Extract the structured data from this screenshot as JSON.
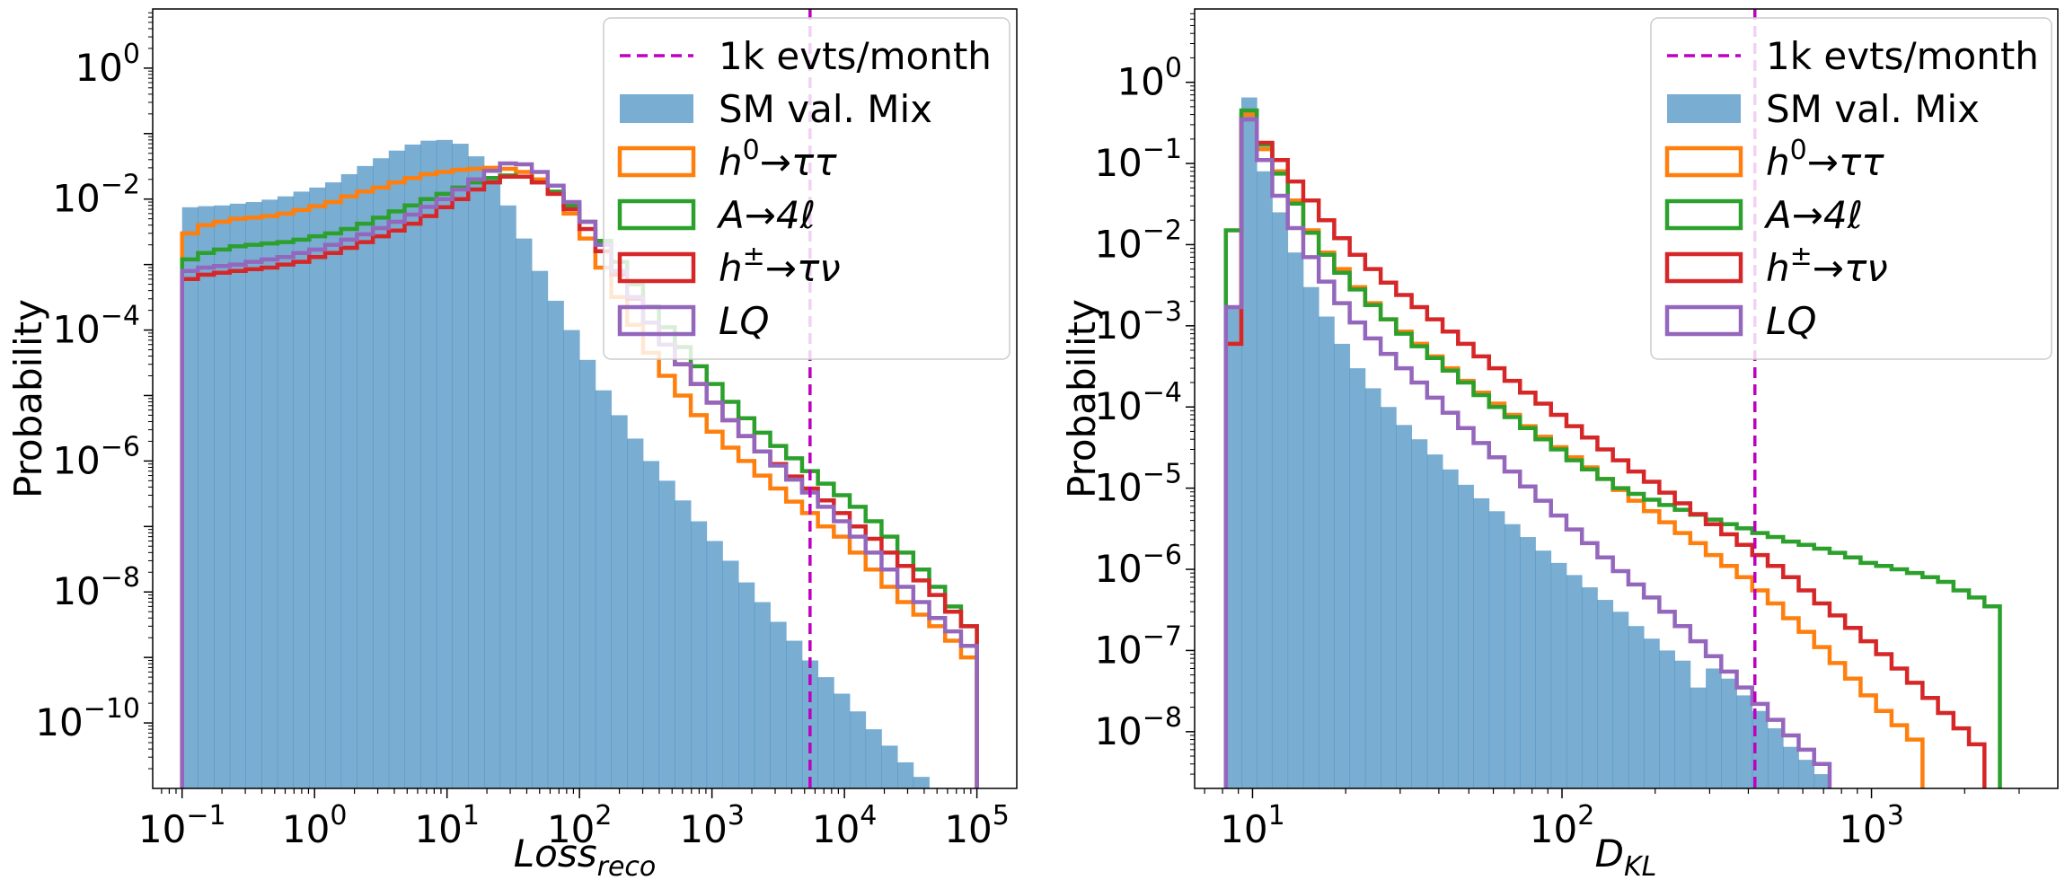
{
  "colors": {
    "sm": "#1f77b4",
    "h0": "#ff7f0e",
    "A": "#2ca02c",
    "hpm": "#d62728",
    "LQ": "#9467bd",
    "threshold": "#bf00bf"
  },
  "chart_data": [
    {
      "type": "histogram",
      "xlabel": "Loss",
      "xlabel_sub": "reco",
      "ylabel": "Probability",
      "xscale": "log",
      "yscale": "log",
      "xlim": [
        0.06,
        200000
      ],
      "ylim": [
        1e-11,
        8
      ],
      "xticks": [
        {
          "base": "10",
          "exp": "−1",
          "v": 0.1
        },
        {
          "base": "10",
          "exp": "0",
          "v": 1
        },
        {
          "base": "10",
          "exp": "1",
          "v": 10
        },
        {
          "base": "10",
          "exp": "2",
          "v": 100
        },
        {
          "base": "10",
          "exp": "3",
          "v": 1000
        },
        {
          "base": "10",
          "exp": "4",
          "v": 10000
        },
        {
          "base": "10",
          "exp": "5",
          "v": 100000
        }
      ],
      "yticks": [
        {
          "base": "10",
          "exp": "0",
          "v": 1
        },
        {
          "base": "10",
          "exp": "−2",
          "v": 0.01
        },
        {
          "base": "10",
          "exp": "−4",
          "v": 0.0001
        },
        {
          "base": "10",
          "exp": "−6",
          "v": 1e-06
        },
        {
          "base": "10",
          "exp": "−8",
          "v": 1e-08
        },
        {
          "base": "10",
          "exp": "−10",
          "v": 1e-10
        }
      ],
      "bins": {
        "min": 0.1,
        "max": 100000,
        "count": 50
      },
      "threshold": 5500,
      "legend_location": "upper-right",
      "series": [
        {
          "name": "SM val. Mix",
          "kind": "filled",
          "color_key": "sm",
          "values": [
            0.0075,
            0.0078,
            0.008,
            0.0085,
            0.009,
            0.0098,
            0.011,
            0.013,
            0.015,
            0.018,
            0.024,
            0.032,
            0.042,
            0.055,
            0.068,
            0.078,
            0.08,
            0.07,
            0.045,
            0.022,
            0.008,
            0.0025,
            0.0008,
            0.00028,
            0.0001,
            3.5e-05,
            1.2e-05,
            5e-06,
            2.2e-06,
            1e-06,
            5e-07,
            2.5e-07,
            1.2e-07,
            6e-08,
            3e-08,
            1.4e-08,
            7e-09,
            3.5e-09,
            1.8e-09,
            9e-10,
            5e-10,
            2.8e-10,
            1.5e-10,
            8e-11,
            4.5e-11,
            2.5e-11,
            1.5e-11,
            null,
            null,
            null
          ]
        },
        {
          "name": "h^0→ττ",
          "kind": "step",
          "color_key": "h0",
          "values": [
            0.003,
            0.004,
            0.0045,
            0.005,
            0.0052,
            0.0055,
            0.006,
            0.0068,
            0.0078,
            0.009,
            0.011,
            0.013,
            0.015,
            0.018,
            0.021,
            0.024,
            0.026,
            0.028,
            0.029,
            0.03,
            0.029,
            0.026,
            0.02,
            0.012,
            0.006,
            0.0025,
            0.0009,
            0.00032,
            0.00012,
            4.5e-05,
            2e-05,
            1e-05,
            5e-06,
            2.8e-06,
            1.6e-06,
            1e-06,
            6e-07,
            3.8e-07,
            2.4e-07,
            1.6e-07,
            1e-07,
            7e-08,
            4e-08,
            2.2e-08,
            1.2e-08,
            7e-09,
            4.5e-09,
            3e-09,
            1.8e-09,
            1e-09
          ]
        },
        {
          "name": "A→4ℓ",
          "kind": "step",
          "color_key": "A",
          "values": [
            0.0012,
            0.0015,
            0.0017,
            0.0019,
            0.002,
            0.0021,
            0.0022,
            0.0024,
            0.0027,
            0.003,
            0.0035,
            0.0042,
            0.0052,
            0.0065,
            0.008,
            0.01,
            0.012,
            0.015,
            0.018,
            0.021,
            0.023,
            0.022,
            0.018,
            0.013,
            0.008,
            0.0045,
            0.0023,
            0.0011,
            0.0005,
            0.00023,
            0.00011,
            5.5e-05,
            2.8e-05,
            1.5e-05,
            8e-06,
            4.5e-06,
            2.7e-06,
            1.7e-06,
            1.1e-06,
            7e-07,
            4.5e-07,
            3e-07,
            2e-07,
            1.2e-07,
            7e-08,
            4e-08,
            2.2e-08,
            1.2e-08,
            6e-09,
            3e-09
          ]
        },
        {
          "name": "h^±→τν",
          "kind": "step",
          "color_key": "hpm",
          "values": [
            0.0006,
            0.0007,
            0.00075,
            0.0008,
            0.00085,
            0.0009,
            0.001,
            0.0011,
            0.0013,
            0.0015,
            0.0018,
            0.0022,
            0.0027,
            0.0033,
            0.0042,
            0.0055,
            0.0075,
            0.01,
            0.014,
            0.018,
            0.022,
            0.022,
            0.018,
            0.012,
            0.007,
            0.0035,
            0.0016,
            0.0007,
            0.0003,
            0.00013,
            6e-05,
            3e-05,
            1.5e-05,
            7.8e-06,
            4.2e-06,
            2.4e-06,
            1.4e-06,
            9e-07,
            5.8e-07,
            3.8e-07,
            2.5e-07,
            1.6e-07,
            1e-07,
            6.5e-08,
            4e-08,
            2.5e-08,
            1.5e-08,
            9e-09,
            5e-09,
            3e-09
          ]
        },
        {
          "name": "LQ",
          "kind": "step",
          "color_key": "LQ",
          "values": [
            0.0008,
            0.0009,
            0.00095,
            0.001,
            0.0011,
            0.0012,
            0.0013,
            0.0015,
            0.0017,
            0.002,
            0.0024,
            0.0029,
            0.0036,
            0.0045,
            0.0058,
            0.0076,
            0.01,
            0.014,
            0.02,
            0.027,
            0.035,
            0.034,
            0.026,
            0.016,
            0.009,
            0.0045,
            0.002,
            0.0008,
            0.00032,
            0.00013,
            6e-05,
            3e-05,
            1.5e-05,
            7.8e-06,
            4.2e-06,
            2.4e-06,
            1.4e-06,
            8.5e-07,
            5.2e-07,
            3.3e-07,
            2e-07,
            1.2e-07,
            7e-08,
            4e-08,
            2.2e-08,
            1.2e-08,
            7e-09,
            4e-09,
            2.5e-09,
            1.5e-09
          ]
        }
      ]
    },
    {
      "type": "histogram",
      "xlabel": "D",
      "xlabel_sub": "KL",
      "ylabel": "Probability",
      "xscale": "log",
      "yscale": "log",
      "xlim": [
        6.5,
        4000
      ],
      "ylim": [
        2e-09,
        8
      ],
      "xticks": [
        {
          "base": "10",
          "exp": "1",
          "v": 10
        },
        {
          "base": "10",
          "exp": "2",
          "v": 100
        },
        {
          "base": "10",
          "exp": "3",
          "v": 1000
        }
      ],
      "yticks": [
        {
          "base": "10",
          "exp": "0",
          "v": 1
        },
        {
          "base": "10",
          "exp": "−1",
          "v": 0.1
        },
        {
          "base": "10",
          "exp": "−2",
          "v": 0.01
        },
        {
          "base": "10",
          "exp": "−3",
          "v": 0.001
        },
        {
          "base": "10",
          "exp": "−4",
          "v": 0.0001
        },
        {
          "base": "10",
          "exp": "−5",
          "v": 1e-05
        },
        {
          "base": "10",
          "exp": "−6",
          "v": 1e-06
        },
        {
          "base": "10",
          "exp": "−7",
          "v": 1e-07
        },
        {
          "base": "10",
          "exp": "−8",
          "v": 1e-08
        }
      ],
      "bins": {
        "min": 8.2,
        "max": 2600,
        "count": 50
      },
      "threshold": 420,
      "legend_location": "upper-right",
      "series": [
        {
          "name": "SM val. Mix",
          "kind": "filled",
          "color_key": "sm",
          "values": [
            0.0017,
            0.65,
            0.08,
            0.025,
            0.008,
            0.003,
            0.0013,
            0.0006,
            0.0003,
            0.00017,
            0.0001,
            6e-05,
            4e-05,
            2.6e-05,
            1.7e-05,
            1.1e-05,
            7.5e-06,
            5.2e-06,
            3.6e-06,
            2.5e-06,
            1.7e-06,
            1.2e-06,
            8.5e-07,
            6e-07,
            4.2e-07,
            3e-07,
            2e-07,
            1.4e-07,
            1e-07,
            7.5e-08,
            3.5e-08,
            6e-08,
            4.5e-08,
            2.8e-08,
            1.8e-08,
            1.1e-08,
            6.5e-09,
            4.5e-09,
            3e-09,
            null,
            null,
            null,
            null,
            null,
            null,
            null,
            null,
            null,
            null,
            null
          ]
        },
        {
          "name": "h^0→ττ",
          "kind": "step",
          "color_key": "h0",
          "values": [
            0.0006,
            0.4,
            0.15,
            0.08,
            0.035,
            0.015,
            0.008,
            0.005,
            0.003,
            0.0019,
            0.0012,
            0.00085,
            0.0006,
            0.00042,
            0.0003,
            0.00021,
            0.00015,
            0.00011,
            8e-05,
            5.8e-05,
            4.3e-05,
            3.2e-05,
            2.4e-05,
            1.8e-05,
            1.3e-05,
            9.5e-06,
            7e-06,
            5.2e-06,
            3.8e-06,
            2.8e-06,
            2.1e-06,
            1.5e-06,
            1.1e-06,
            8e-07,
            5.5e-07,
            3.8e-07,
            2.5e-07,
            1.7e-07,
            1.1e-07,
            7e-08,
            4.5e-08,
            2.8e-08,
            1.8e-08,
            1.2e-08,
            8e-09,
            null,
            null,
            null,
            null,
            null
          ]
        },
        {
          "name": "A→4ℓ",
          "kind": "step",
          "color_key": "A",
          "values": [
            0.015,
            0.45,
            0.17,
            0.075,
            0.032,
            0.014,
            0.0075,
            0.0045,
            0.0028,
            0.0018,
            0.0012,
            0.0008,
            0.00056,
            0.0004,
            0.00028,
            0.0002,
            0.00014,
            0.0001,
            7.5e-05,
            5.5e-05,
            4e-05,
            3e-05,
            2.2e-05,
            1.7e-05,
            1.3e-05,
            1e-05,
            8.5e-06,
            7.2e-06,
            6.2e-06,
            5.4e-06,
            4.7e-06,
            4.1e-06,
            3.6e-06,
            3.2e-06,
            2.8e-06,
            2.5e-06,
            2.2e-06,
            2e-06,
            1.8e-06,
            1.6e-06,
            1.4e-06,
            1.2e-06,
            1.1e-06,
            1e-06,
            9e-07,
            8e-07,
            7e-07,
            5.5e-07,
            4.5e-07,
            3.5e-07
          ]
        },
        {
          "name": "h^±→τν",
          "kind": "step",
          "color_key": "hpm",
          "values": [
            0.0006,
            0.35,
            0.18,
            0.11,
            0.06,
            0.035,
            0.02,
            0.012,
            0.0075,
            0.005,
            0.0034,
            0.0024,
            0.0017,
            0.0012,
            0.00085,
            0.0006,
            0.00042,
            0.0003,
            0.00021,
            0.00015,
            0.00011,
            8e-05,
            5.8e-05,
            4.2e-05,
            3e-05,
            2.2e-05,
            1.6e-05,
            1.2e-05,
            8.8e-06,
            6.5e-06,
            4.8e-06,
            3.6e-06,
            2.7e-06,
            2e-06,
            1.5e-06,
            1.1e-06,
            8e-07,
            5.5e-07,
            3.8e-07,
            2.7e-07,
            1.9e-07,
            1.3e-07,
            9e-08,
            6e-08,
            4e-08,
            2.6e-08,
            1.7e-08,
            1.1e-08,
            7e-09,
            null
          ]
        },
        {
          "name": "LQ",
          "kind": "step",
          "color_key": "LQ",
          "values": [
            0.0017,
            0.35,
            0.11,
            0.04,
            0.016,
            0.007,
            0.0035,
            0.0019,
            0.0011,
            0.0007,
            0.00045,
            0.0003,
            0.0002,
            0.00013,
            8.5e-05,
            5.5e-05,
            3.6e-05,
            2.4e-05,
            1.6e-05,
            1.05e-05,
            7e-06,
            4.6e-06,
            3.1e-06,
            2.1e-06,
            1.4e-06,
            9.5e-07,
            6.5e-07,
            4.5e-07,
            3e-07,
            2e-07,
            1.3e-07,
            8.5e-08,
            5.5e-08,
            3.5e-08,
            2.2e-08,
            1.4e-08,
            9e-09,
            6e-09,
            4e-09,
            null,
            null,
            null,
            null,
            null,
            null,
            null,
            null,
            null,
            null,
            null
          ]
        }
      ]
    }
  ],
  "legend": [
    {
      "key": "threshold",
      "label": "1k evts/month",
      "kind": "dashed"
    },
    {
      "key": "sm",
      "label": "SM val. Mix",
      "kind": "filled"
    },
    {
      "key": "h0",
      "label_main": "h",
      "label_sup": "0",
      "label_rest": "→ττ",
      "kind": "box"
    },
    {
      "key": "A",
      "label_main": "A",
      "label_sup": "",
      "label_rest": "→4ℓ",
      "kind": "box"
    },
    {
      "key": "hpm",
      "label_main": "h",
      "label_sup": "±",
      "label_rest": "→τν",
      "kind": "box"
    },
    {
      "key": "LQ",
      "label_main": "LQ",
      "label_sup": "",
      "label_rest": "",
      "kind": "box"
    }
  ]
}
